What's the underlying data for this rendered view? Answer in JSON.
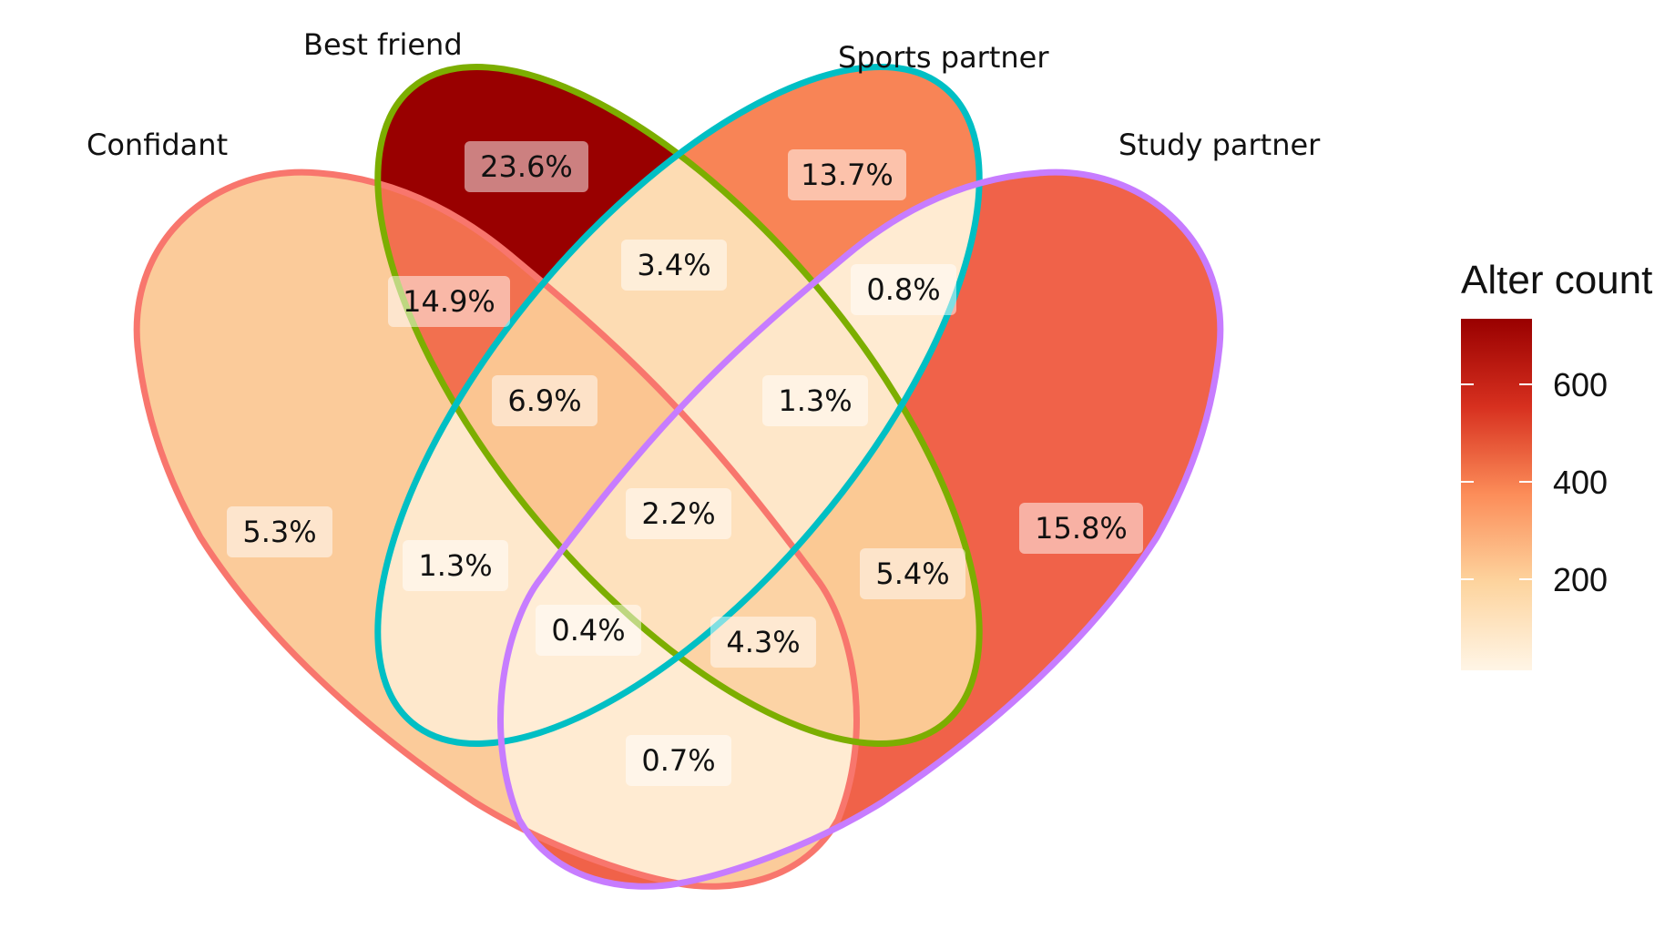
{
  "sets": [
    {
      "name": "Confidant",
      "color": "#F8766D"
    },
    {
      "name": "Best friend",
      "color": "#7CAE00"
    },
    {
      "name": "Sports partner",
      "color": "#00BFC4"
    },
    {
      "name": "Study partner",
      "color": "#C77CFF"
    }
  ],
  "regions": [
    {
      "sets": [
        "Confidant"
      ],
      "label": "5.3%",
      "fill": "#FBCB9A"
    },
    {
      "sets": [
        "Best friend"
      ],
      "label": "23.6%",
      "fill": "#990000"
    },
    {
      "sets": [
        "Sports partner"
      ],
      "label": "13.7%",
      "fill": "#F88456"
    },
    {
      "sets": [
        "Study partner"
      ],
      "label": "15.8%",
      "fill": "#F06249"
    },
    {
      "sets": [
        "Confidant",
        "Best friend"
      ],
      "label": "14.9%",
      "fill": "#F2704F"
    },
    {
      "sets": [
        "Best friend",
        "Sports partner"
      ],
      "label": "3.4%",
      "fill": "#FDDCB3"
    },
    {
      "sets": [
        "Sports partner",
        "Study partner"
      ],
      "label": "0.8%",
      "fill": "#FFEBD2"
    },
    {
      "sets": [
        "Confidant",
        "Best friend",
        "Sports partner"
      ],
      "label": "6.9%",
      "fill": "#FBC591"
    },
    {
      "sets": [
        "Best friend",
        "Sports partner",
        "Study partner"
      ],
      "label": "1.3%",
      "fill": "#FEE7C9"
    },
    {
      "sets": [
        "Confidant",
        "Best friend",
        "Sports partner",
        "Study partner"
      ],
      "label": "2.2%",
      "fill": "#FEE1BD"
    },
    {
      "sets": [
        "Confidant",
        "Sports partner"
      ],
      "label": "1.3%",
      "fill": "#FEE8CC"
    },
    {
      "sets": [
        "Best friend",
        "Study partner"
      ],
      "label": "5.4%",
      "fill": "#FBC994"
    },
    {
      "sets": [
        "Confidant",
        "Sports partner",
        "Study partner"
      ],
      "label": "0.4%",
      "fill": "#FFEDD6"
    },
    {
      "sets": [
        "Confidant",
        "Best friend",
        "Study partner"
      ],
      "label": "4.3%",
      "fill": "#FCD3A5"
    },
    {
      "sets": [
        "Confidant",
        "Study partner"
      ],
      "label": "0.7%",
      "fill": "#FFEBD2"
    }
  ],
  "legend": {
    "title": "Alter count",
    "ticks": [
      "600",
      "400",
      "200"
    ],
    "colors": [
      "#FFF5E6",
      "#FDD49E",
      "#FC8D59",
      "#D7301F",
      "#990000"
    ]
  }
}
